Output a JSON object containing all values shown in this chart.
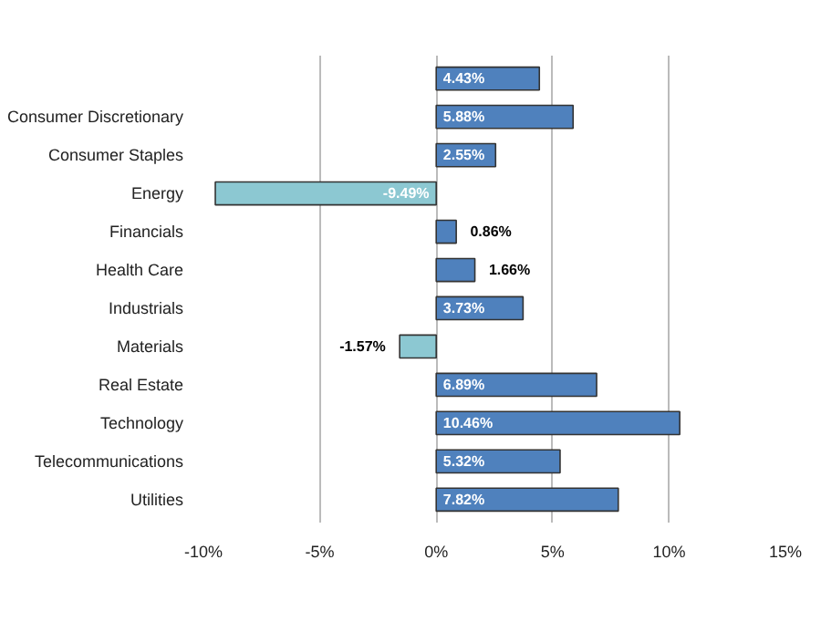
{
  "chart_data": {
    "type": "bar",
    "orientation": "horizontal",
    "categories": [
      null,
      "Consumer Discretionary",
      "Consumer Staples",
      "Energy",
      "Financials",
      "Health Care",
      "Industrials",
      "Materials",
      "Real Estate",
      "Technology",
      "Telecommunications",
      "Utilities"
    ],
    "values": [
      4.43,
      5.88,
      2.55,
      -9.49,
      0.86,
      1.66,
      3.73,
      -1.57,
      6.89,
      10.46,
      5.32,
      7.82
    ],
    "colors": [
      "#4f81bd",
      "#4f81bd",
      "#4f81bd",
      "#8cc8d2",
      "#4f81bd",
      "#4f81bd",
      "#4f81bd",
      "#8cc8d2",
      "#4f81bd",
      "#4f81bd",
      "#4f81bd",
      "#4f81bd"
    ],
    "value_labels": [
      "4.43%",
      "5.88%",
      "2.55%",
      "-9.49%",
      "0.86%",
      "1.66%",
      "3.73%",
      "-1.57%",
      "6.89%",
      "10.46%",
      "5.32%",
      "7.82%"
    ],
    "xlim": [
      -10,
      15
    ],
    "xticks": [
      {
        "value": -10,
        "label": "-10%"
      },
      {
        "value": -5,
        "label": "-5%"
      },
      {
        "value": 0,
        "label": "0%"
      },
      {
        "value": 5,
        "label": "5%"
      },
      {
        "value": 10,
        "label": "10%"
      },
      {
        "value": 15,
        "label": "15%"
      }
    ],
    "grid": "x"
  }
}
